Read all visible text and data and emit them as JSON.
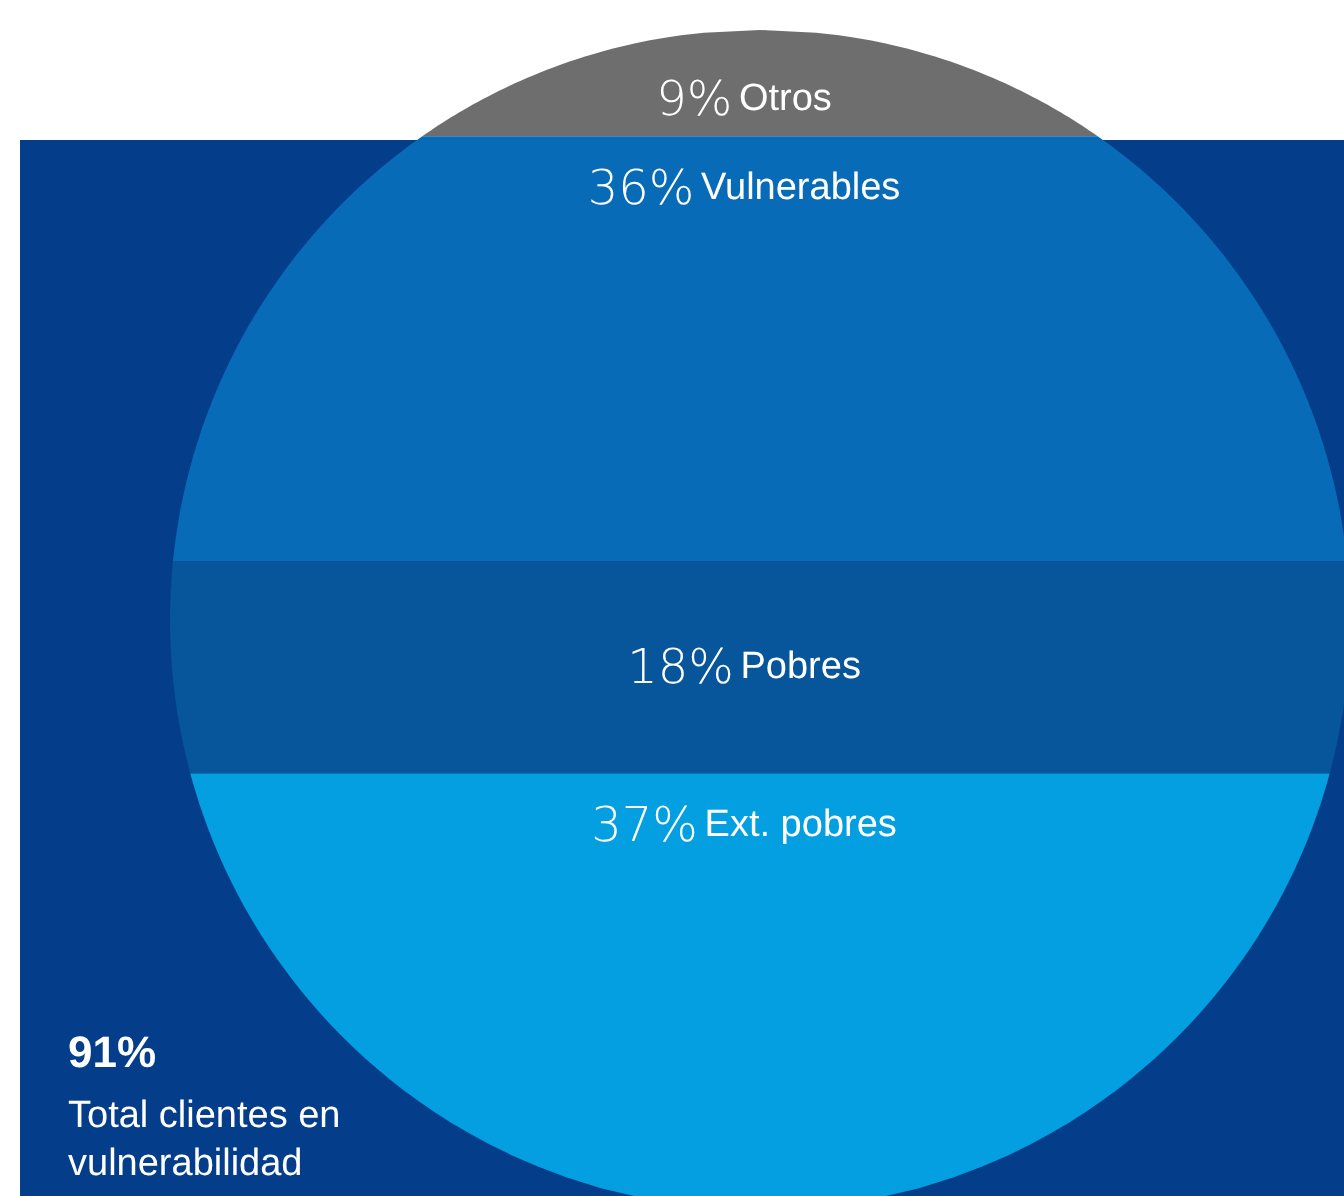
{
  "chart_data": {
    "type": "other",
    "categories": [
      "Otros",
      "Vulnerables",
      "Pobres",
      "Ext. pobres"
    ],
    "values": [
      9,
      36,
      18,
      37
    ],
    "value_labels": [
      "9%",
      "36%",
      "18%",
      "37%"
    ],
    "colors": [
      "#6e6e6e",
      "#086bb7",
      "#07559a",
      "#049fe0"
    ],
    "annotations": [
      "91%",
      "Total clientes en vulnerabilidad"
    ]
  }
}
